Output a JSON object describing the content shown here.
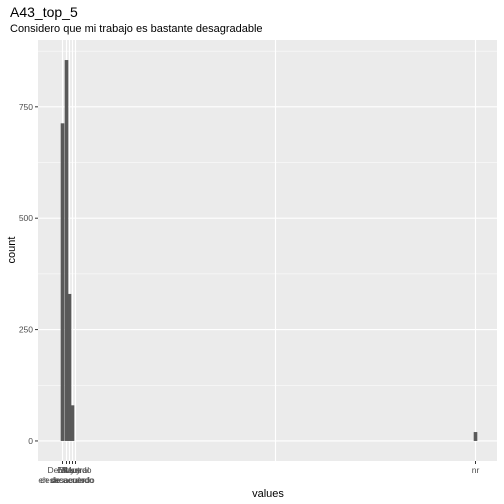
{
  "chart_data": {
    "type": "bar",
    "title": "A43_top_5",
    "subtitle": "Considero que mi trabajo es bastante desagradable",
    "xlabel": "values",
    "ylabel": "count",
    "categories": [
      "En desacuerdo",
      "Muy en desacuerdo",
      "De acuerdo",
      "Muy de acuerdo",
      "Neutral",
      "nr"
    ],
    "values": [
      713,
      855,
      330,
      80,
      0,
      20
    ],
    "yticks": [
      0,
      250,
      500,
      750
    ],
    "ylim": [
      -45,
      900
    ],
    "grid": true,
    "legend": "none",
    "colors": {
      "panel": "#ebebeb",
      "grid": "#ffffff",
      "bar": "#595959"
    }
  }
}
